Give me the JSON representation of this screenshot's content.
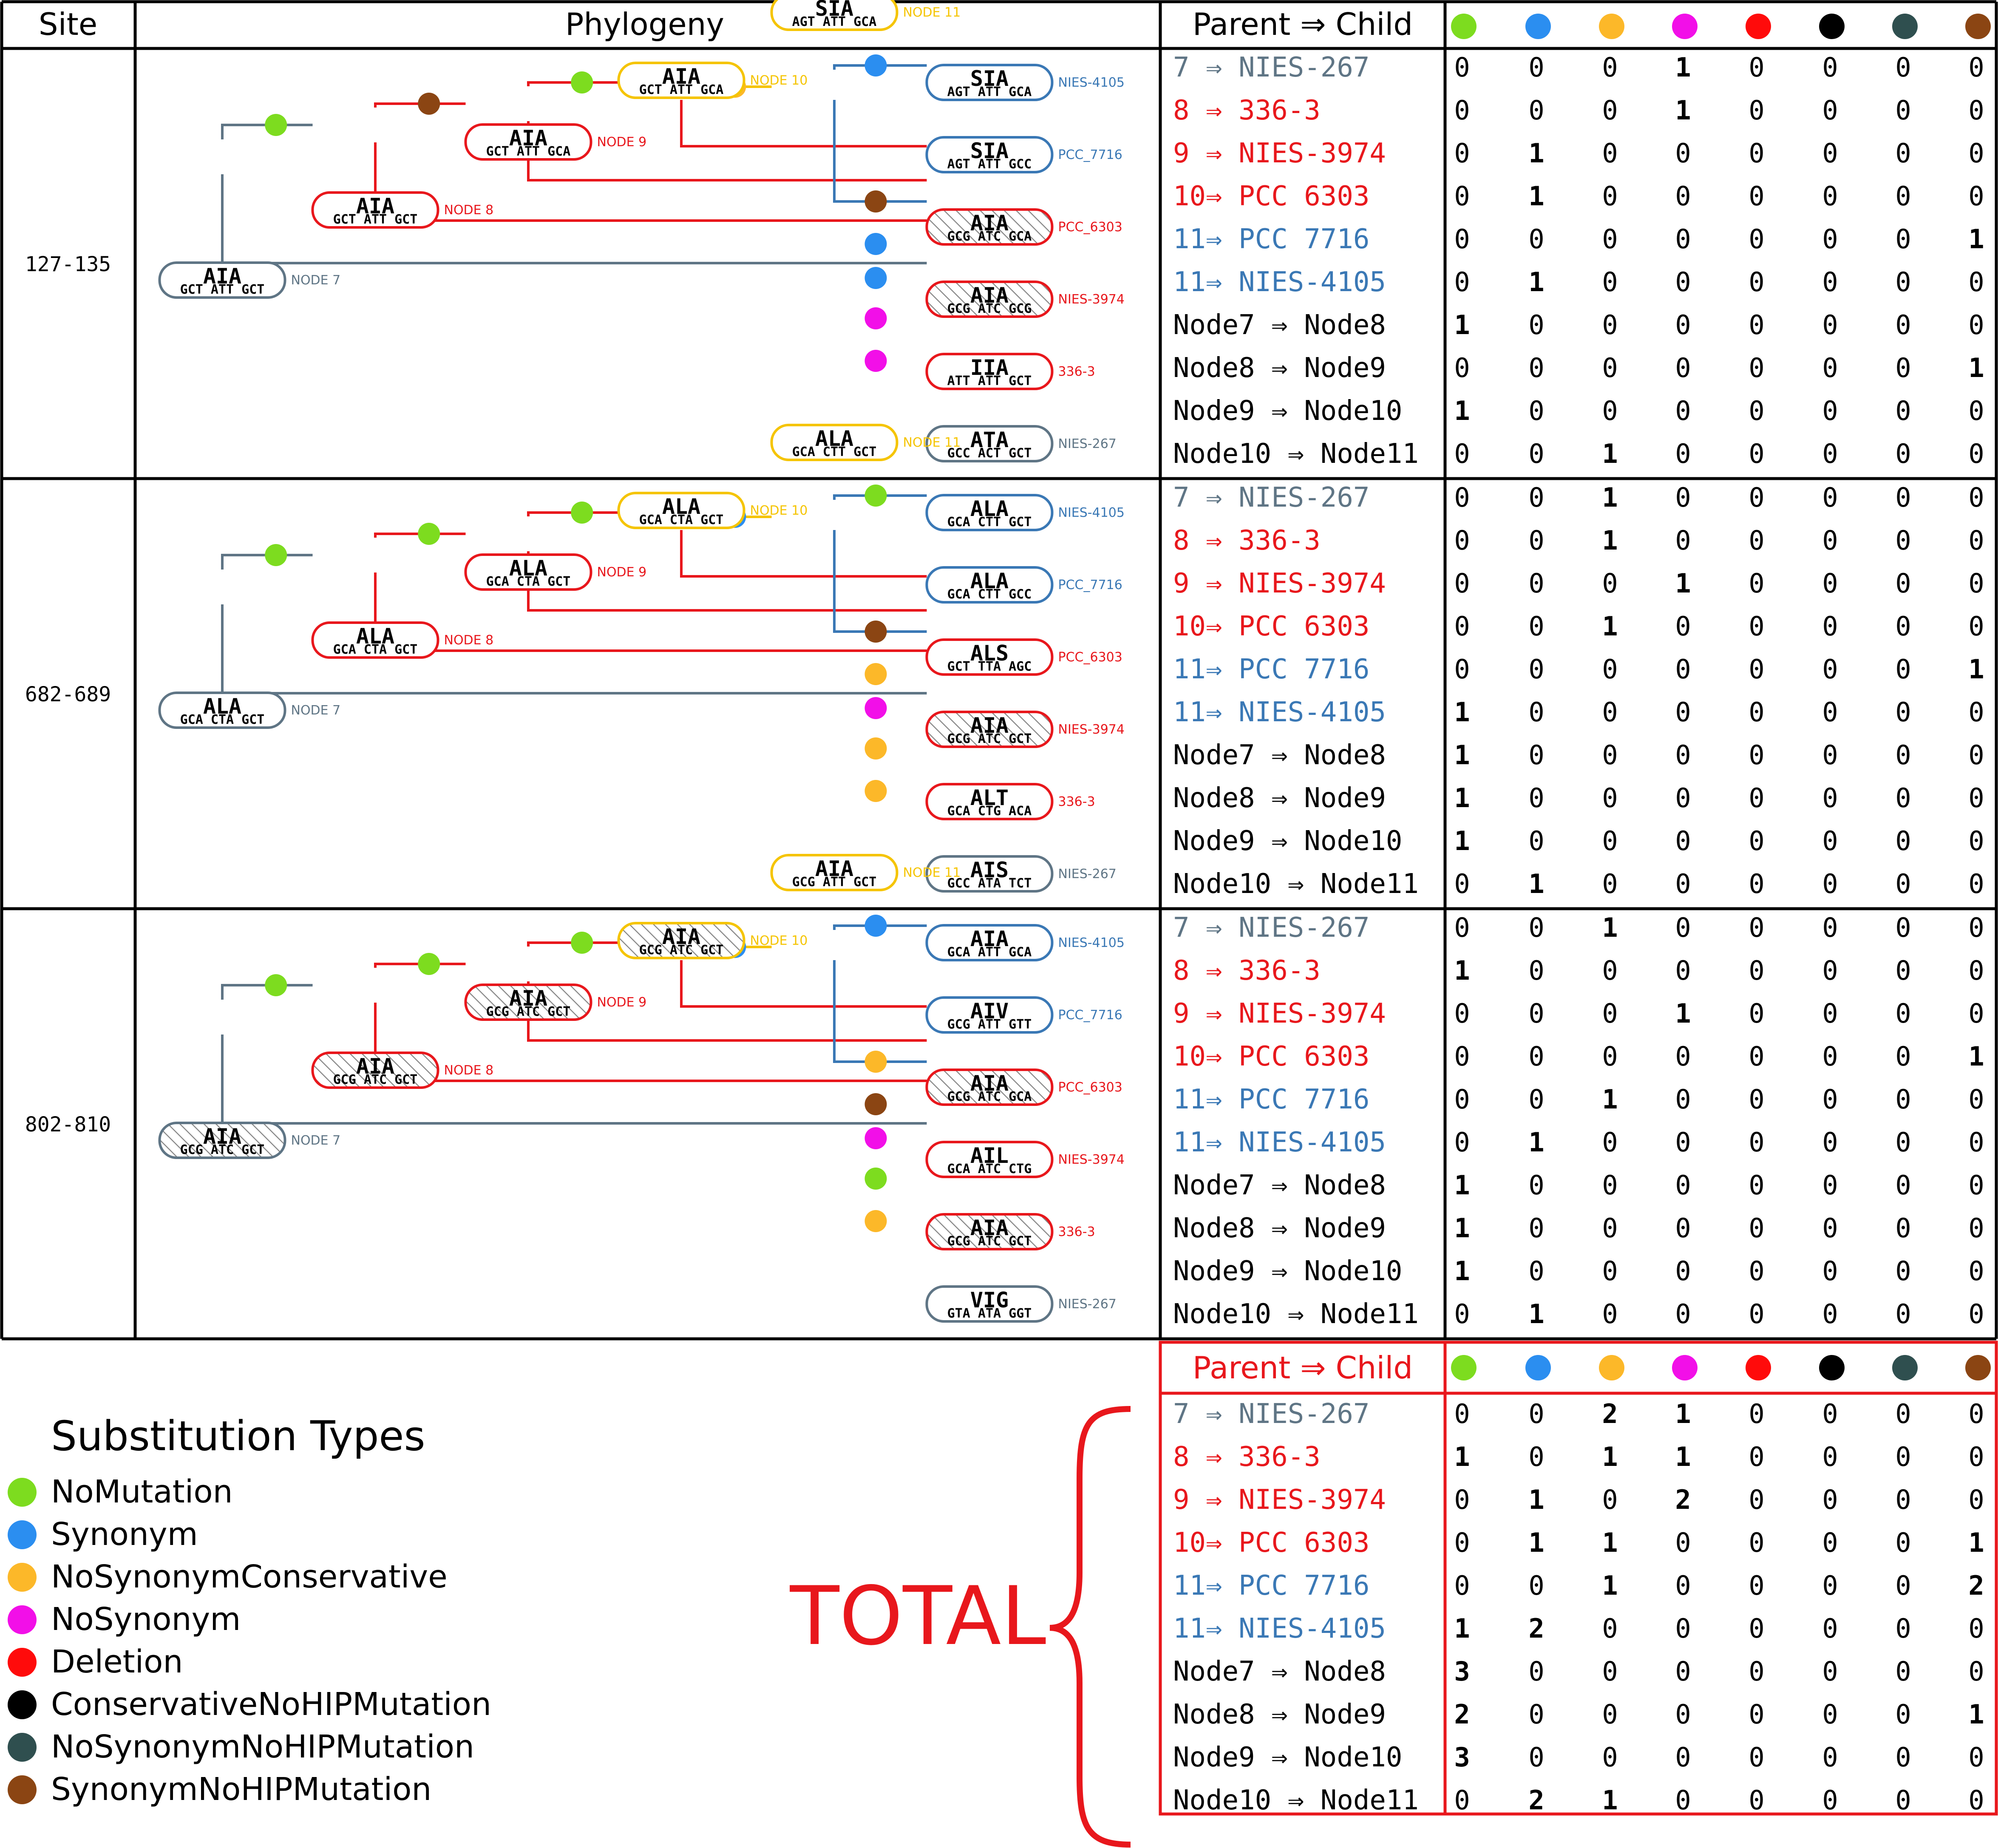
{
  "header": {
    "site": "Site",
    "phylogeny": "Phylogeny",
    "parent_child": "Parent ⇒ Child"
  },
  "colors": {
    "NoMutation": "#7ddc1f",
    "Synonym": "#2b8ef0",
    "NoSynonymConservative": "#fcb829",
    "NoSynonym": "#f20fe8",
    "Deletion": "#ff0b0b",
    "ConservativeNoHIPMutation": "#000000",
    "NoSynonymNoHIPMutation": "#2f4f4f",
    "SynonymNoHIPMutation": "#8b4513",
    "clade_grey": "#5f7585",
    "clade_red": "#e8171c",
    "clade_yellow": "#f5c400",
    "clade_blue": "#3a78b5"
  },
  "column_types": [
    "NoMutation",
    "Synonym",
    "NoSynonymConservative",
    "NoSynonym",
    "Deletion",
    "ConservativeNoHIPMutation",
    "NoSynonymNoHIPMutation",
    "SynonymNoHIPMutation"
  ],
  "row_labels": [
    {
      "text": "7  ⇒ NIES-267",
      "color": "grey"
    },
    {
      "text": "8  ⇒ 336-3",
      "color": "red"
    },
    {
      "text": "9  ⇒ NIES-3974",
      "color": "red"
    },
    {
      "text": "10⇒ PCC 6303",
      "color": "red"
    },
    {
      "text": "11⇒ PCC 7716",
      "color": "blue"
    },
    {
      "text": "11⇒ NIES-4105",
      "color": "blue"
    },
    {
      "text": "Node7 ⇒ Node8",
      "color": "black"
    },
    {
      "text": "Node8 ⇒ Node9",
      "color": "black"
    },
    {
      "text": "Node9 ⇒ Node10",
      "color": "black"
    },
    {
      "text": "Node10 ⇒ Node11",
      "color": "black"
    }
  ],
  "sites": [
    {
      "site": "127-135",
      "nodes": {
        "node7": {
          "aa": "AIA",
          "codons": "GCT ATT GCT",
          "label": "NODE 7"
        },
        "node8": {
          "aa": "AIA",
          "codons": "GCT ATT GCT",
          "label": "NODE 8"
        },
        "node9": {
          "aa": "AIA",
          "codons": "GCT ATT GCA",
          "label": "NODE 9"
        },
        "node10": {
          "aa": "AIA",
          "codons": "GCT ATT GCA",
          "label": "NODE 10"
        },
        "node11": {
          "aa": "SIA",
          "codons": "AGT ATT GCA",
          "label": "NODE 11"
        }
      },
      "leaves": {
        "nies4105": {
          "aa": "SIA",
          "codons": "AGT ATT GCA",
          "label": "NIES-4105"
        },
        "pcc7716": {
          "aa": "SIA",
          "codons": "AGT ATT GCC",
          "label": "PCC_7716"
        },
        "pcc6303": {
          "aa": "AIA",
          "codons": "GCG ATC GCA",
          "label": "PCC_6303"
        },
        "nies3974": {
          "aa": "AIA",
          "codons": "GCG ATC GCG",
          "label": "NIES-3974"
        },
        "s3363": {
          "aa": "IIA",
          "codons": "ATT ATT GCT",
          "label": "336-3"
        },
        "nies267": {
          "aa": "ATA",
          "codons": "GCC ACT GCT",
          "label": "NIES-267"
        }
      },
      "hatched": [
        "pcc6303",
        "nies3974"
      ],
      "dots": {
        "n7n8": "NoMutation",
        "n8n9": "SynonymNoHIPMutation",
        "n9n10": "NoMutation",
        "n10n11": "NoSynonymConservative",
        "nies4105": "Synonym",
        "pcc7716": "SynonymNoHIPMutation",
        "pcc6303": "Synonym",
        "nies3974": "Synonym",
        "s3363": "NoSynonym",
        "nies267": "NoSynonym"
      },
      "counts": [
        [
          0,
          0,
          0,
          1,
          0,
          0,
          0,
          0
        ],
        [
          0,
          0,
          0,
          1,
          0,
          0,
          0,
          0
        ],
        [
          0,
          1,
          0,
          0,
          0,
          0,
          0,
          0
        ],
        [
          0,
          1,
          0,
          0,
          0,
          0,
          0,
          0
        ],
        [
          0,
          0,
          0,
          0,
          0,
          0,
          0,
          1
        ],
        [
          0,
          1,
          0,
          0,
          0,
          0,
          0,
          0
        ],
        [
          1,
          0,
          0,
          0,
          0,
          0,
          0,
          0
        ],
        [
          0,
          0,
          0,
          0,
          0,
          0,
          0,
          1
        ],
        [
          1,
          0,
          0,
          0,
          0,
          0,
          0,
          0
        ],
        [
          0,
          0,
          1,
          0,
          0,
          0,
          0,
          0
        ]
      ]
    },
    {
      "site": "682-689",
      "nodes": {
        "node7": {
          "aa": "ALA",
          "codons": "GCA CTA GCT",
          "label": "NODE 7"
        },
        "node8": {
          "aa": "ALA",
          "codons": "GCA CTA GCT",
          "label": "NODE 8"
        },
        "node9": {
          "aa": "ALA",
          "codons": "GCA CTA GCT",
          "label": "NODE 9"
        },
        "node10": {
          "aa": "ALA",
          "codons": "GCA CTA GCT",
          "label": "NODE 10"
        },
        "node11": {
          "aa": "ALA",
          "codons": "GCA CTT GCT",
          "label": "NODE 11"
        }
      },
      "leaves": {
        "nies4105": {
          "aa": "ALA",
          "codons": "GCA CTT GCT",
          "label": "NIES-4105"
        },
        "pcc7716": {
          "aa": "ALA",
          "codons": "GCA CTT GCC",
          "label": "PCC_7716"
        },
        "pcc6303": {
          "aa": "ALS",
          "codons": "GCT TTA AGC",
          "label": "PCC_6303"
        },
        "nies3974": {
          "aa": "AIA",
          "codons": "GCG ATC GCT",
          "label": "NIES-3974"
        },
        "s3363": {
          "aa": "ALT",
          "codons": "GCA CTG ACA",
          "label": "336-3"
        },
        "nies267": {
          "aa": "AIS",
          "codons": "GCC ATA TCT",
          "label": "NIES-267"
        }
      },
      "hatched": [
        "nies3974"
      ],
      "dots": {
        "n7n8": "NoMutation",
        "n8n9": "NoMutation",
        "n9n10": "NoMutation",
        "n10n11": "Synonym",
        "nies4105": "NoMutation",
        "pcc7716": "SynonymNoHIPMutation",
        "pcc6303": "NoSynonymConservative",
        "nies3974": "NoSynonym",
        "s3363": "NoSynonymConservative",
        "nies267": "NoSynonymConservative"
      },
      "counts": [
        [
          0,
          0,
          1,
          0,
          0,
          0,
          0,
          0
        ],
        [
          0,
          0,
          1,
          0,
          0,
          0,
          0,
          0
        ],
        [
          0,
          0,
          0,
          1,
          0,
          0,
          0,
          0
        ],
        [
          0,
          0,
          1,
          0,
          0,
          0,
          0,
          0
        ],
        [
          0,
          0,
          0,
          0,
          0,
          0,
          0,
          1
        ],
        [
          1,
          0,
          0,
          0,
          0,
          0,
          0,
          0
        ],
        [
          1,
          0,
          0,
          0,
          0,
          0,
          0,
          0
        ],
        [
          1,
          0,
          0,
          0,
          0,
          0,
          0,
          0
        ],
        [
          1,
          0,
          0,
          0,
          0,
          0,
          0,
          0
        ],
        [
          0,
          1,
          0,
          0,
          0,
          0,
          0,
          0
        ]
      ]
    },
    {
      "site": "802-810",
      "nodes": {
        "node7": {
          "aa": "AIA",
          "codons": "GCG ATC GCT",
          "label": "NODE 7"
        },
        "node8": {
          "aa": "AIA",
          "codons": "GCG ATC GCT",
          "label": "NODE 8"
        },
        "node9": {
          "aa": "AIA",
          "codons": "GCG ATC GCT",
          "label": "NODE 9"
        },
        "node10": {
          "aa": "AIA",
          "codons": "GCG ATC GCT",
          "label": "NODE 10"
        },
        "node11": {
          "aa": "AIA",
          "codons": "GCG ATT GCT",
          "label": "NODE 11"
        }
      },
      "leaves": {
        "nies4105": {
          "aa": "AIA",
          "codons": "GCA ATT GCA",
          "label": "NIES-4105"
        },
        "pcc7716": {
          "aa": "AIV",
          "codons": "GCG ATT GTT",
          "label": "PCC_7716"
        },
        "pcc6303": {
          "aa": "AIA",
          "codons": "GCG ATC GCA",
          "label": "PCC_6303"
        },
        "nies3974": {
          "aa": "AIL",
          "codons": "GCA ATC CTG",
          "label": "NIES-3974"
        },
        "s3363": {
          "aa": "AIA",
          "codons": "GCG ATC GCT",
          "label": "336-3"
        },
        "nies267": {
          "aa": "VIG",
          "codons": "GTA ATA GGT",
          "label": "NIES-267"
        }
      },
      "hatched": [
        "node7",
        "node8",
        "node9",
        "node10",
        "pcc6303",
        "s3363"
      ],
      "dots": {
        "n7n8": "NoMutation",
        "n8n9": "NoMutation",
        "n9n10": "NoMutation",
        "n10n11": "Synonym",
        "nies4105": "Synonym",
        "pcc7716": "NoSynonymConservative",
        "pcc6303": "SynonymNoHIPMutation",
        "nies3974": "NoSynonym",
        "s3363": "NoMutation",
        "nies267": "NoSynonymConservative"
      },
      "counts": [
        [
          0,
          0,
          1,
          0,
          0,
          0,
          0,
          0
        ],
        [
          1,
          0,
          0,
          0,
          0,
          0,
          0,
          0
        ],
        [
          0,
          0,
          0,
          1,
          0,
          0,
          0,
          0
        ],
        [
          0,
          0,
          0,
          0,
          0,
          0,
          0,
          1
        ],
        [
          0,
          0,
          1,
          0,
          0,
          0,
          0,
          0
        ],
        [
          0,
          1,
          0,
          0,
          0,
          0,
          0,
          0
        ],
        [
          1,
          0,
          0,
          0,
          0,
          0,
          0,
          0
        ],
        [
          1,
          0,
          0,
          0,
          0,
          0,
          0,
          0
        ],
        [
          1,
          0,
          0,
          0,
          0,
          0,
          0,
          0
        ],
        [
          0,
          1,
          0,
          0,
          0,
          0,
          0,
          0
        ]
      ]
    }
  ],
  "total": {
    "title": "TOTAL",
    "header": "Parent ⇒ Child",
    "counts": [
      [
        0,
        0,
        2,
        1,
        0,
        0,
        0,
        0
      ],
      [
        1,
        0,
        1,
        1,
        0,
        0,
        0,
        0
      ],
      [
        0,
        1,
        0,
        2,
        0,
        0,
        0,
        0
      ],
      [
        0,
        1,
        1,
        0,
        0,
        0,
        0,
        1
      ],
      [
        0,
        0,
        1,
        0,
        0,
        0,
        0,
        2
      ],
      [
        1,
        2,
        0,
        0,
        0,
        0,
        0,
        0
      ],
      [
        3,
        0,
        0,
        0,
        0,
        0,
        0,
        0
      ],
      [
        2,
        0,
        0,
        0,
        0,
        0,
        0,
        1
      ],
      [
        3,
        0,
        0,
        0,
        0,
        0,
        0,
        0
      ],
      [
        0,
        2,
        1,
        0,
        0,
        0,
        0,
        0
      ]
    ]
  },
  "legend": {
    "title": "Substitution Types",
    "items": [
      "NoMutation",
      "Synonym",
      "NoSynonymConservative",
      "NoSynonym",
      "Deletion",
      "ConservativeNoHIPMutation",
      "NoSynonymNoHIPMutation",
      "SynonymNoHIPMutation"
    ]
  }
}
